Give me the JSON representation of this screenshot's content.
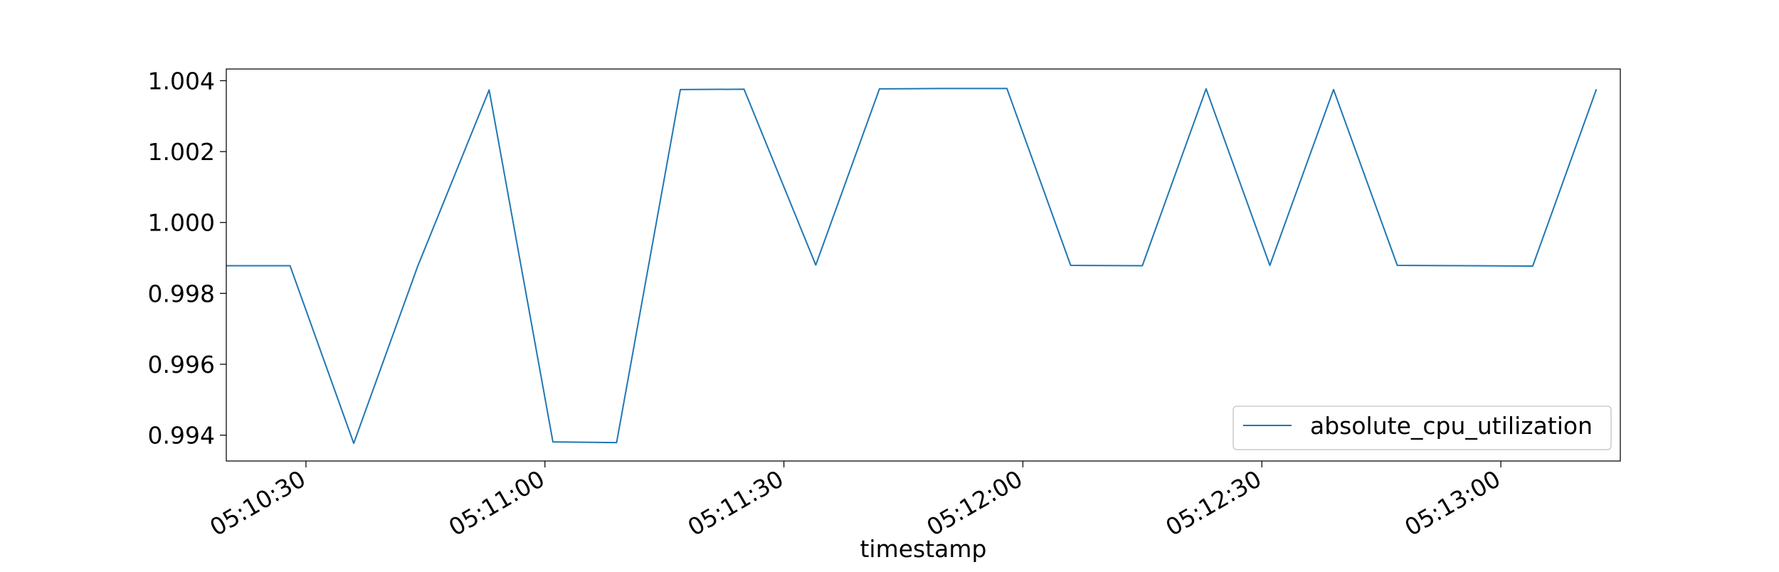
{
  "chart_data": {
    "type": "line",
    "title": "",
    "xlabel": "timestamp",
    "ylabel": "",
    "xlim": [
      "05:10:20",
      "05:13:15"
    ],
    "ylim": [
      0.99327,
      1.00433
    ],
    "x_ticks": [
      "05:10:30",
      "05:11:00",
      "05:11:30",
      "05:12:00",
      "05:12:30",
      "05:13:00"
    ],
    "y_ticks": [
      0.994,
      0.996,
      0.998,
      1.0,
      1.002,
      1.004
    ],
    "y_tick_labels": [
      "0.994",
      "0.996",
      "0.998",
      "1.000",
      "1.002",
      "1.004"
    ],
    "grid": false,
    "legend_position": "lower right",
    "series": [
      {
        "name": "absolute_cpu_utilization",
        "color": "#1f77b4",
        "x": [
          "05:10:20",
          "05:10:28",
          "05:10:36",
          "05:10:44",
          "05:10:53",
          "05:11:01",
          "05:11:09",
          "05:11:17",
          "05:11:25",
          "05:11:34",
          "05:11:42",
          "05:11:50",
          "05:11:58",
          "05:12:06",
          "05:12:15",
          "05:12:23",
          "05:12:31",
          "05:12:39",
          "05:12:47",
          "05:12:56",
          "05:13:04",
          "05:13:12"
        ],
        "values": [
          0.99878,
          0.99878,
          0.99377,
          0.99875,
          1.00374,
          0.99381,
          0.99379,
          1.00375,
          1.00376,
          0.9988,
          1.00377,
          1.00378,
          1.00378,
          0.99879,
          0.99878,
          1.00377,
          0.99879,
          1.00375,
          0.99879,
          0.99878,
          0.99877,
          1.00376
        ]
      }
    ]
  }
}
